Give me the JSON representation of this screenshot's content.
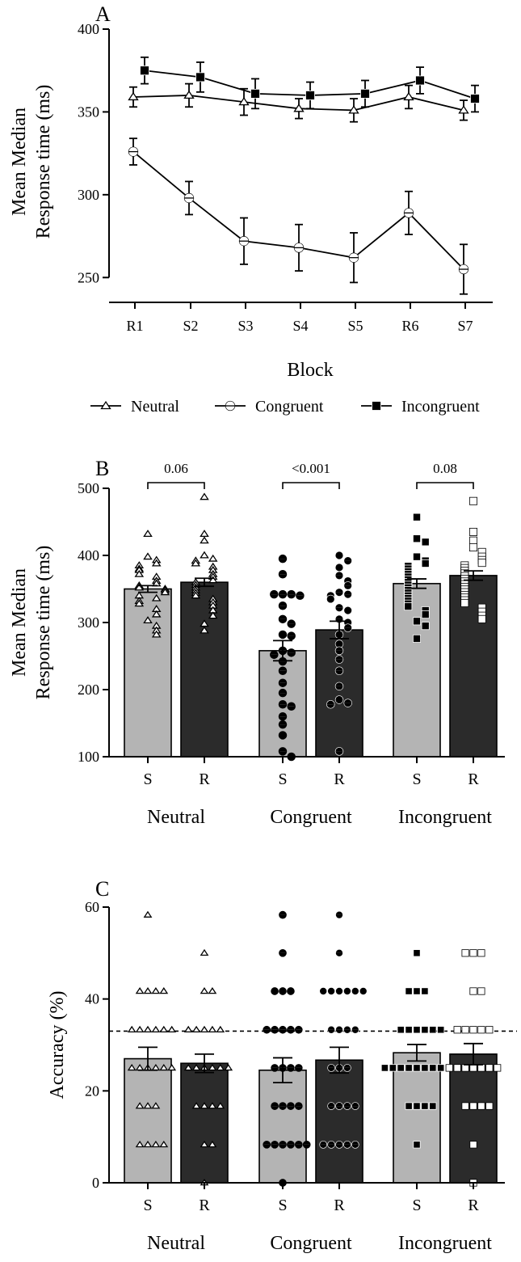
{
  "chart_data": [
    {
      "id": "A",
      "type": "line",
      "panel_label": "A",
      "ylabel_lines": [
        "Mean Median",
        "Response time (ms)"
      ],
      "xlabel": "Block",
      "ylim": [
        235,
        400
      ],
      "yticks": [
        250,
        300,
        350,
        400
      ],
      "categories": [
        "R1",
        "S2",
        "S3",
        "S4",
        "S5",
        "R6",
        "S7"
      ],
      "series": [
        {
          "name": "Neutral",
          "marker": "triangle",
          "values": [
            359,
            360,
            356,
            352,
            351,
            359,
            351
          ],
          "errors": [
            6,
            7,
            8,
            6,
            7,
            7,
            6
          ]
        },
        {
          "name": "Congruent",
          "marker": "half-circle",
          "values": [
            326,
            298,
            272,
            268,
            262,
            289,
            255
          ],
          "errors": [
            8,
            10,
            14,
            14,
            15,
            13,
            15
          ]
        },
        {
          "name": "Incongruent",
          "marker": "square",
          "values": [
            375,
            371,
            361,
            360,
            361,
            369,
            358
          ],
          "errors": [
            8,
            9,
            9,
            8,
            8,
            8,
            8
          ]
        }
      ]
    },
    {
      "id": "B",
      "type": "bar",
      "panel_label": "B",
      "ylabel_lines": [
        "Mean Median",
        "Response time (ms)"
      ],
      "ylim": [
        100,
        500
      ],
      "yticks": [
        100,
        200,
        300,
        400,
        500
      ],
      "groups": [
        {
          "name": "Neutral",
          "marker": "triangle",
          "p_value": "0.06",
          "bars": [
            {
              "label": "S",
              "color": "light",
              "mean": 350,
              "sem": 5,
              "points": [
                432,
                398,
                393,
                388,
                385,
                380,
                378,
                372,
                368,
                362,
                358,
                355,
                352,
                350,
                348,
                345,
                340,
                336,
                332,
                328,
                320,
                312,
                303,
                295,
                288,
                282
              ]
            },
            {
              "label": "R",
              "color": "dark",
              "mean": 360,
              "sem": 6,
              "points": [
                487,
                432,
                422,
                400,
                395,
                392,
                388,
                383,
                378,
                372,
                368,
                363,
                360,
                356,
                352,
                348,
                344,
                340,
                335,
                330,
                325,
                318,
                310,
                298,
                288
              ]
            }
          ]
        },
        {
          "name": "Congruent",
          "marker": "half-circle",
          "p_value": "<0.001",
          "bars": [
            {
              "label": "S",
              "color": "light",
              "mean": 258,
              "sem": 15,
              "points": [
                395,
                372,
                342,
                342,
                342,
                340,
                325,
                305,
                298,
                282,
                280,
                258,
                255,
                252,
                242,
                228,
                210,
                195,
                178,
                175,
                160,
                148,
                132,
                108,
                100
              ]
            },
            {
              "label": "R",
              "color": "dark",
              "mean": 289,
              "sem": 13,
              "points": [
                400,
                392,
                382,
                370,
                362,
                355,
                345,
                342,
                340,
                335,
                322,
                318,
                305,
                300,
                292,
                282,
                268,
                258,
                245,
                228,
                205,
                185,
                180,
                178,
                108
              ]
            }
          ]
        },
        {
          "name": "Incongruent",
          "marker": "square",
          "p_value": "0.08",
          "bars": [
            {
              "label": "S",
              "color": "light",
              "mean": 358,
              "sem": 7,
              "points": [
                457,
                425,
                420,
                398,
                392,
                388,
                384,
                380,
                376,
                372,
                368,
                364,
                360,
                356,
                352,
                348,
                344,
                340,
                336,
                332,
                328,
                324,
                318,
                312,
                302,
                295,
                276
              ]
            },
            {
              "label": "R",
              "color": "dark",
              "mean": 370,
              "sem": 7,
              "points": [
                481,
                435,
                422,
                412,
                405,
                398,
                393,
                389,
                385,
                381,
                377,
                373,
                369,
                365,
                361,
                357,
                353,
                349,
                345,
                341,
                337,
                333,
                329,
                322,
                316,
                310,
                305
              ]
            }
          ]
        }
      ]
    },
    {
      "id": "C",
      "type": "bar",
      "panel_label": "C",
      "ylabel_lines": [
        "Accuracy (%)"
      ],
      "ylim": [
        0,
        60
      ],
      "yticks": [
        0,
        20,
        40,
        60
      ],
      "reference_line": 33,
      "groups": [
        {
          "name": "Neutral",
          "marker": "triangle",
          "bars": [
            {
              "label": "S",
              "color": "light",
              "mean": 27,
              "sem": 2.5,
              "points": [
                58.3,
                41.7,
                41.7,
                41.7,
                41.7,
                33.3,
                33.3,
                33.3,
                33.3,
                33.3,
                33.3,
                25,
                25,
                25,
                25,
                25,
                25,
                16.7,
                16.7,
                16.7,
                8.3,
                8.3,
                8.3,
                8.3
              ]
            },
            {
              "label": "R",
              "color": "dark",
              "mean": 26,
              "sem": 2,
              "points": [
                50,
                41.7,
                41.7,
                33.3,
                33.3,
                33.3,
                33.3,
                33.3,
                25,
                25,
                25,
                25,
                25,
                25,
                16.7,
                16.7,
                16.7,
                16.7,
                8.3,
                8.3,
                0
              ]
            }
          ]
        },
        {
          "name": "Congruent",
          "marker": "half-circle",
          "bars": [
            {
              "label": "S",
              "color": "light",
              "mean": 24.5,
              "sem": 2.7,
              "points": [
                58.3,
                50,
                41.7,
                41.7,
                41.7,
                33.3,
                33.3,
                33.3,
                33.3,
                33.3,
                25,
                25,
                25,
                25,
                16.7,
                16.7,
                16.7,
                16.7,
                8.3,
                8.3,
                8.3,
                8.3,
                8.3,
                8.3,
                0
              ]
            },
            {
              "label": "R",
              "color": "dark",
              "mean": 26.7,
              "sem": 2.8,
              "points": [
                58.3,
                50,
                41.7,
                41.7,
                41.7,
                41.7,
                41.7,
                41.7,
                33.3,
                33.3,
                33.3,
                33.3,
                25,
                25,
                25,
                16.7,
                16.7,
                16.7,
                16.7,
                8.3,
                8.3,
                8.3,
                8.3,
                8.3
              ]
            }
          ]
        },
        {
          "name": "Incongruent",
          "marker": "square",
          "bars": [
            {
              "label": "S",
              "color": "light",
              "mean": 28.3,
              "sem": 1.8,
              "points": [
                50,
                41.7,
                41.7,
                41.7,
                33.3,
                33.3,
                33.3,
                33.3,
                33.3,
                33.3,
                25,
                25,
                25,
                25,
                25,
                25,
                25,
                25,
                25,
                16.7,
                16.7,
                16.7,
                16.7,
                8.3
              ]
            },
            {
              "label": "R",
              "color": "dark",
              "mean": 28,
              "sem": 2.3,
              "points": [
                50,
                50,
                50,
                41.7,
                41.7,
                33.3,
                33.3,
                33.3,
                33.3,
                33.3,
                25,
                25,
                25,
                25,
                25,
                25,
                25,
                16.7,
                16.7,
                16.7,
                16.7,
                8.3,
                0
              ]
            }
          ]
        }
      ]
    }
  ],
  "colors": {
    "bar_light": "#b4b4b4",
    "bar_dark": "#2b2b2b",
    "axis": "#000000",
    "marker_fill_light": "#ffffff",
    "marker_fill_dark": "#000000"
  }
}
